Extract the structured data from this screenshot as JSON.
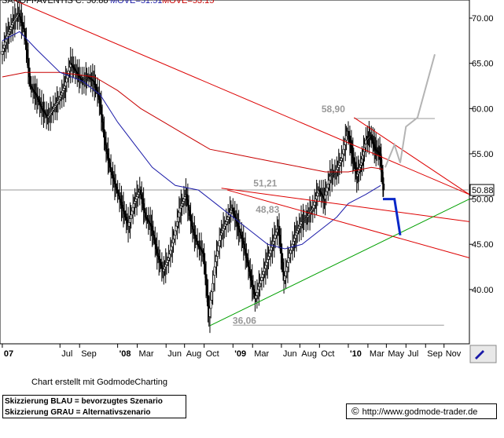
{
  "header": {
    "name": "SANOFI-AVENTIS",
    "close_text": "C. 50.88",
    "mov1": "MOVE=51.51",
    "mov2": "MOVE=53.15"
  },
  "colors": {
    "candles": "#000000",
    "trend_red": "#dd0000",
    "ma_blue": "#1a1aa8",
    "ma_red": "#c80000",
    "support_green": "#00a000",
    "scenario_blue": "#0a28c8",
    "scenario_grey": "#b4b4b4",
    "price_line": "#999999"
  },
  "annotations": {
    "high": "58,90",
    "level1": "51,21",
    "level2": "48,83",
    "low": "36,06",
    "last_price": "50.88"
  },
  "chart_data": {
    "type": "candlestick",
    "y_ticks": [
      "70.00",
      "65.00",
      "60.00",
      "55.00",
      "50.00",
      "45.00",
      "40.00"
    ],
    "y_tick_values": [
      70,
      65,
      60,
      55,
      50,
      45,
      40
    ],
    "ylim": [
      34,
      72
    ],
    "x_tick_labels": [
      "07",
      "Jul",
      "Sep",
      "'08",
      "Mar",
      "Jun",
      "Aug",
      "Oct",
      "'09",
      "Mar",
      "Jun",
      "Aug",
      "Oct",
      "'10",
      "Mar",
      "May",
      "Jul",
      "Sep",
      "Nov"
    ],
    "x_tick_positions": [
      2007.0,
      2007.5,
      2007.67,
      2008.0,
      2008.17,
      2008.42,
      2008.58,
      2008.75,
      2009.0,
      2009.17,
      2009.42,
      2009.58,
      2009.75,
      2010.0,
      2010.17,
      2010.33,
      2010.5,
      2010.67,
      2010.83
    ],
    "xlim": [
      2006.98,
      2011.05
    ],
    "close_series": [
      [
        2007.0,
        66.0
      ],
      [
        2007.05,
        68.0
      ],
      [
        2007.1,
        69.5
      ],
      [
        2007.15,
        70.5
      ],
      [
        2007.2,
        68.5
      ],
      [
        2007.25,
        62.5
      ],
      [
        2007.3,
        61.5
      ],
      [
        2007.35,
        60.0
      ],
      [
        2007.4,
        59.0
      ],
      [
        2007.45,
        60.0
      ],
      [
        2007.5,
        61.0
      ],
      [
        2007.55,
        62.5
      ],
      [
        2007.6,
        65.0
      ],
      [
        2007.65,
        64.0
      ],
      [
        2007.7,
        63.0
      ],
      [
        2007.75,
        63.5
      ],
      [
        2007.8,
        63.0
      ],
      [
        2007.85,
        61.0
      ],
      [
        2007.9,
        56.0
      ],
      [
        2007.95,
        53.0
      ],
      [
        2008.0,
        51.0
      ],
      [
        2008.05,
        49.0
      ],
      [
        2008.1,
        47.0
      ],
      [
        2008.15,
        49.5
      ],
      [
        2008.2,
        51.0
      ],
      [
        2008.25,
        48.0
      ],
      [
        2008.3,
        47.0
      ],
      [
        2008.35,
        44.0
      ],
      [
        2008.4,
        42.0
      ],
      [
        2008.45,
        43.5
      ],
      [
        2008.5,
        46.0
      ],
      [
        2008.55,
        49.0
      ],
      [
        2008.6,
        50.5
      ],
      [
        2008.65,
        47.0
      ],
      [
        2008.7,
        45.0
      ],
      [
        2008.75,
        44.0
      ],
      [
        2008.8,
        37.0
      ],
      [
        2008.85,
        42.5
      ],
      [
        2008.9,
        46.0
      ],
      [
        2008.95,
        47.5
      ],
      [
        2009.0,
        49.0
      ],
      [
        2009.05,
        47.0
      ],
      [
        2009.1,
        45.0
      ],
      [
        2009.15,
        42.0
      ],
      [
        2009.2,
        39.0
      ],
      [
        2009.25,
        41.0
      ],
      [
        2009.3,
        43.0
      ],
      [
        2009.35,
        45.0
      ],
      [
        2009.4,
        47.0
      ],
      [
        2009.45,
        41.0
      ],
      [
        2009.5,
        44.0
      ],
      [
        2009.55,
        46.0
      ],
      [
        2009.6,
        47.5
      ],
      [
        2009.65,
        48.0
      ],
      [
        2009.7,
        49.0
      ],
      [
        2009.75,
        51.0
      ],
      [
        2009.8,
        50.0
      ],
      [
        2009.85,
        52.5
      ],
      [
        2009.9,
        53.0
      ],
      [
        2009.95,
        54.5
      ],
      [
        2010.0,
        57.5
      ],
      [
        2010.04,
        55.0
      ],
      [
        2010.08,
        52.5
      ],
      [
        2010.12,
        54.0
      ],
      [
        2010.16,
        56.5
      ],
      [
        2010.2,
        57.0
      ],
      [
        2010.24,
        55.5
      ],
      [
        2010.28,
        55.0
      ],
      [
        2010.31,
        51.0
      ]
    ],
    "ma_blue": [
      [
        2007.0,
        67.5
      ],
      [
        2007.15,
        68.5
      ],
      [
        2007.3,
        66.5
      ],
      [
        2007.5,
        64.0
      ],
      [
        2007.7,
        63.0
      ],
      [
        2007.85,
        61.5
      ],
      [
        2008.0,
        58.5
      ],
      [
        2008.15,
        56.0
      ],
      [
        2008.3,
        53.5
      ],
      [
        2008.5,
        51.5
      ],
      [
        2008.7,
        51.0
      ],
      [
        2008.85,
        49.5
      ],
      [
        2009.0,
        48.0
      ],
      [
        2009.15,
        46.5
      ],
      [
        2009.3,
        45.0
      ],
      [
        2009.45,
        44.5
      ],
      [
        2009.6,
        45.0
      ],
      [
        2009.75,
        46.5
      ],
      [
        2009.9,
        48.0
      ],
      [
        2010.0,
        49.5
      ],
      [
        2010.15,
        50.5
      ],
      [
        2010.28,
        51.5
      ]
    ],
    "ma_red": [
      [
        2007.0,
        63.5
      ],
      [
        2007.2,
        64.0
      ],
      [
        2007.5,
        64.0
      ],
      [
        2007.8,
        63.5
      ],
      [
        2008.0,
        62.0
      ],
      [
        2008.2,
        60.0
      ],
      [
        2008.4,
        58.5
      ],
      [
        2008.6,
        57.0
      ],
      [
        2008.8,
        55.5
      ],
      [
        2009.0,
        55.0
      ],
      [
        2009.2,
        54.5
      ],
      [
        2009.4,
        54.0
      ],
      [
        2009.6,
        53.5
      ],
      [
        2009.8,
        53.0
      ],
      [
        2010.0,
        53.0
      ],
      [
        2010.2,
        53.5
      ],
      [
        2010.3,
        53.3
      ]
    ],
    "trend_lines": [
      {
        "color": "red",
        "points": [
          [
            2007.1,
            72.0
          ],
          [
            2011.05,
            50.5
          ]
        ]
      },
      {
        "color": "red",
        "points": [
          [
            2010.05,
            59.0
          ],
          [
            2011.05,
            50.5
          ]
        ]
      },
      {
        "color": "red",
        "points": [
          [
            2008.9,
            51.2
          ],
          [
            2011.05,
            47.5
          ]
        ]
      },
      {
        "color": "red",
        "points": [
          [
            2008.95,
            51.0
          ],
          [
            2011.05,
            43.5
          ]
        ]
      },
      {
        "color": "green",
        "points": [
          [
            2008.8,
            36.0
          ],
          [
            2011.05,
            50.0
          ]
        ]
      }
    ],
    "hlines": [
      {
        "y": 51.0,
        "color": "grey"
      },
      {
        "y": 58.9,
        "x_from": 2010.05,
        "x_to": 2010.75,
        "color": "grey"
      },
      {
        "y": 36.06,
        "x_from": 2009.0,
        "x_to": 2010.83,
        "color": "grey"
      }
    ],
    "scenario_blue": [
      [
        2010.3,
        50.0
      ],
      [
        2010.4,
        50.0
      ],
      [
        2010.45,
        46.0
      ]
    ],
    "scenario_grey": [
      [
        2010.32,
        53.5
      ],
      [
        2010.4,
        56.0
      ],
      [
        2010.45,
        54.0
      ],
      [
        2010.5,
        58.0
      ],
      [
        2010.6,
        59.0
      ],
      [
        2010.75,
        66.0
      ]
    ]
  },
  "footer": {
    "credit": "Chart erstellt mit GodmodeCharting",
    "legend_blue": "Skizzierung BLAU = bevorzugtes Szenario",
    "legend_grey": "Skizzierung GRAU = Alternativszenario",
    "copyright": "©",
    "url": "http://www.godmode-trader.de"
  }
}
